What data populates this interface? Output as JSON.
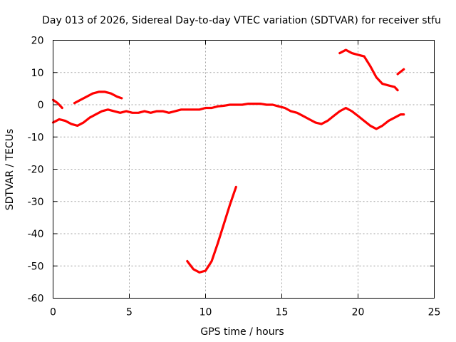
{
  "chart_data": {
    "type": "line",
    "title": "Day 013 of 2026, Sidereal Day-to-day VTEC variation (SDTVAR) for receiver stfu",
    "xlabel": "GPS time / hours",
    "ylabel": "SDTVAR / TECUs",
    "xlim": [
      0,
      25
    ],
    "ylim": [
      -60,
      20
    ],
    "grid": true,
    "x_ticks": [
      0,
      5,
      10,
      15,
      20,
      25
    ],
    "y_ticks": [
      -60,
      -50,
      -40,
      -30,
      -20,
      -10,
      0,
      10,
      20
    ],
    "x_tick_labels": [
      "0",
      "5",
      "10",
      "15",
      "20",
      "25"
    ],
    "y_tick_labels": [
      "-60",
      "-50",
      "-40",
      "-30",
      "-20",
      "-10",
      "0",
      "10",
      "20"
    ],
    "series_color": "#ff0000",
    "series": [
      {
        "name": "segment-1",
        "x": [
          0.0,
          0.3,
          0.6
        ],
        "y": [
          1.5,
          0.5,
          -1.0
        ]
      },
      {
        "name": "segment-2",
        "x": [
          0.0,
          0.4,
          0.8,
          1.2,
          1.6,
          2.0,
          2.4,
          2.8,
          3.2,
          3.6,
          4.0,
          4.4,
          4.8,
          5.2,
          5.6,
          6.0,
          6.4,
          6.8,
          7.2,
          7.6,
          8.0,
          8.4,
          8.8,
          9.2,
          9.6,
          10.0,
          10.4,
          10.8,
          11.2,
          11.6,
          12.0,
          12.4,
          12.8,
          13.2,
          13.6,
          14.0,
          14.4,
          14.8,
          15.2,
          15.6,
          16.0,
          16.4,
          16.8,
          17.2,
          17.6,
          18.0,
          18.4,
          18.8,
          19.2,
          19.6,
          20.0,
          20.4,
          20.8,
          21.2,
          21.6,
          22.0,
          22.4,
          22.8,
          23.0
        ],
        "y": [
          -5.5,
          -4.5,
          -5.0,
          -6.0,
          -6.5,
          -5.5,
          -4.0,
          -3.0,
          -2.0,
          -1.5,
          -2.0,
          -2.5,
          -2.0,
          -2.5,
          -2.5,
          -2.0,
          -2.5,
          -2.0,
          -2.0,
          -2.5,
          -2.0,
          -1.5,
          -1.5,
          -1.5,
          -1.5,
          -1.0,
          -1.0,
          -0.5,
          -0.3,
          0.0,
          0.0,
          0.0,
          0.3,
          0.3,
          0.3,
          0.0,
          0.0,
          -0.5,
          -1.0,
          -2.0,
          -2.5,
          -3.5,
          -4.5,
          -5.5,
          -6.0,
          -5.0,
          -3.5,
          -2.0,
          -1.0,
          -2.0,
          -3.5,
          -5.0,
          -6.5,
          -7.5,
          -6.5,
          -5.0,
          -4.0,
          -3.0,
          -3.0
        ]
      },
      {
        "name": "segment-3",
        "x": [
          1.4,
          1.8,
          2.2,
          2.6,
          3.0,
          3.4,
          3.8,
          4.2,
          4.5
        ],
        "y": [
          0.5,
          1.5,
          2.5,
          3.5,
          4.0,
          4.0,
          3.5,
          2.5,
          2.0
        ]
      },
      {
        "name": "segment-4",
        "x": [
          8.8,
          9.2,
          9.6,
          10.0,
          10.4,
          10.8,
          11.2,
          11.6,
          12.0
        ],
        "y": [
          -48.5,
          -51.0,
          -52.0,
          -51.5,
          -48.5,
          -43.0,
          -37.0,
          -31.0,
          -25.5
        ]
      },
      {
        "name": "segment-5",
        "x": [
          18.8,
          19.2,
          19.6,
          20.0,
          20.4,
          20.8,
          21.2,
          21.6,
          22.0,
          22.4,
          22.6
        ],
        "y": [
          16.0,
          17.0,
          16.0,
          15.5,
          15.0,
          12.0,
          8.5,
          6.5,
          6.0,
          5.5,
          4.5
        ]
      },
      {
        "name": "segment-6",
        "x": [
          22.6,
          23.0
        ],
        "y": [
          9.5,
          11.0
        ]
      }
    ]
  }
}
